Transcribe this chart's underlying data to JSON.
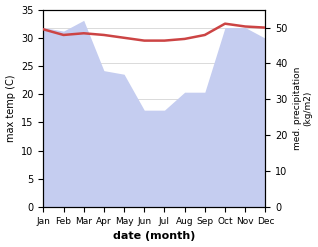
{
  "months": [
    "Jan",
    "Feb",
    "Mar",
    "Apr",
    "May",
    "Jun",
    "Jul",
    "Aug",
    "Sep",
    "Oct",
    "Nov",
    "Dec"
  ],
  "month_indices": [
    0,
    1,
    2,
    3,
    4,
    5,
    6,
    7,
    8,
    9,
    10,
    11
  ],
  "max_temp": [
    31.5,
    30.5,
    30.8,
    30.5,
    30.0,
    29.5,
    29.5,
    29.8,
    30.5,
    32.5,
    32.0,
    31.8
  ],
  "precipitation": [
    50,
    49,
    52,
    38,
    37,
    27,
    27,
    32,
    32,
    50,
    50,
    47
  ],
  "temp_color": "#cc4444",
  "precip_fill_color": "#c5cdf0",
  "xlabel": "date (month)",
  "ylabel_left": "max temp (C)",
  "ylabel_right": "med. precipitation\n(kg/m2)",
  "ylim_left": [
    0,
    35
  ],
  "ylim_right": [
    0,
    55
  ],
  "yticks_left": [
    0,
    5,
    10,
    15,
    20,
    25,
    30,
    35
  ],
  "yticks_right": [
    0,
    10,
    20,
    30,
    40,
    50
  ],
  "background_color": "#ffffff",
  "temp_linewidth": 1.8
}
